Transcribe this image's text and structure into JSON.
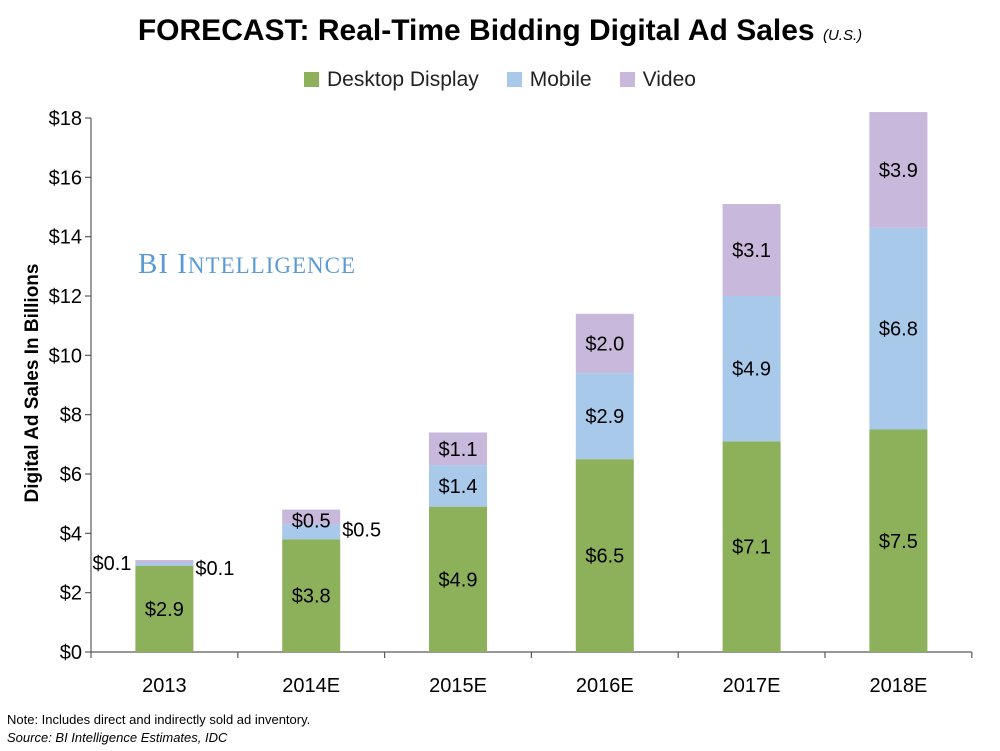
{
  "chart_data": {
    "type": "bar",
    "stacked": true,
    "title": "FORECAST: Real-Time Bidding Digital Ad Sales",
    "subtitle": "(U.S.)",
    "xlabel": "",
    "ylabel": "Digital Ad Sales In Billions",
    "ylim": [
      0,
      18
    ],
    "yticks": [
      "$0",
      "$2",
      "$4",
      "$6",
      "$8",
      "$10",
      "$12",
      "$14",
      "$16",
      "$18"
    ],
    "grid": false,
    "legend_position": "top",
    "categories": [
      "2013",
      "2014E",
      "2015E",
      "2016E",
      "2017E",
      "2018E"
    ],
    "series": [
      {
        "name": "Desktop Display",
        "color": "#8db05b",
        "values": [
          2.9,
          3.8,
          4.9,
          6.5,
          7.1,
          7.5
        ],
        "labels": [
          "$2.9",
          "$3.8",
          "$4.9",
          "$6.5",
          "$7.1",
          "$7.5"
        ]
      },
      {
        "name": "Mobile",
        "color": "#a8c9ea",
        "values": [
          0.1,
          0.5,
          1.4,
          2.9,
          4.9,
          6.8
        ],
        "labels": [
          "$0.1",
          "$0.5",
          "$1.4",
          "$2.9",
          "$4.9",
          "$6.8"
        ]
      },
      {
        "name": "Video",
        "color": "#c8b8db",
        "values": [
          0.1,
          0.5,
          1.1,
          2.0,
          3.1,
          3.9
        ],
        "labels": [
          "$0.1",
          "$0.5",
          "$1.1",
          "$2.0",
          "$3.1",
          "$3.9"
        ]
      }
    ]
  },
  "watermark": {
    "first": "BI ",
    "big_i": "I",
    "rest": "NTELLIGENCE"
  },
  "footnote": {
    "note": "Note: Includes direct and indirectly sold ad inventory.",
    "source": "Source: BI Intelligence Estimates, IDC"
  }
}
